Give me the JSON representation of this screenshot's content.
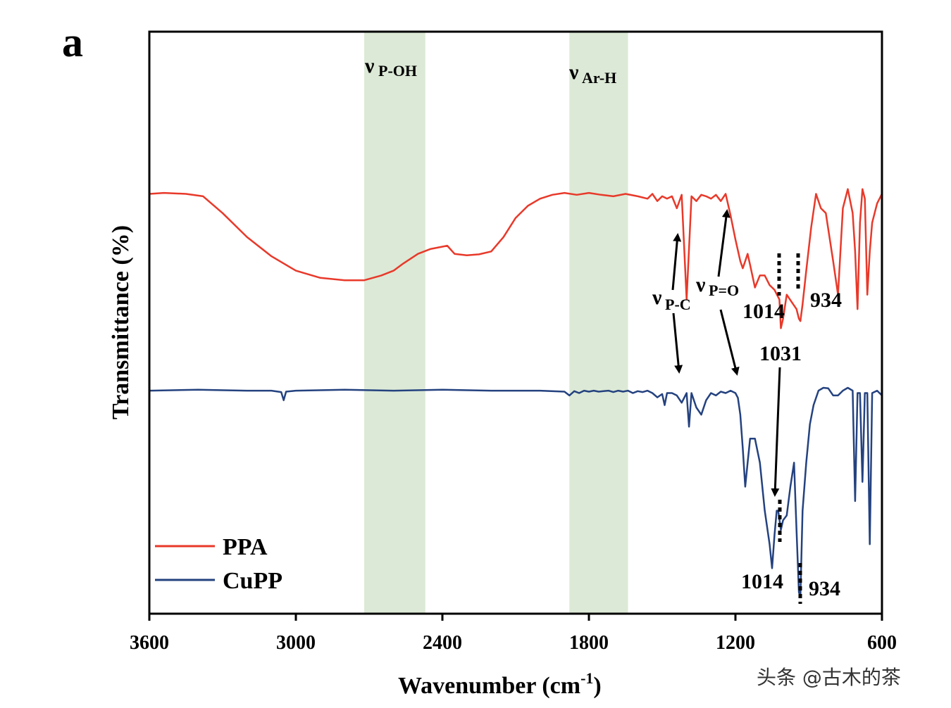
{
  "chart_data": {
    "type": "line",
    "panel_label": "a",
    "xlabel": "Wavenumber (cm",
    "xlabel_sup": "-1",
    "xlabel_end": ")",
    "ylabel": "Transmittance (%)",
    "xlim": [
      3600,
      600
    ],
    "xticks": [
      3600,
      3000,
      2400,
      1800,
      1200,
      600
    ],
    "ylim": [
      0,
      1
    ],
    "colors": {
      "PPA": "#e8392a",
      "CuPP": "#24427f",
      "band": "#dce9d6"
    },
    "bands": [
      {
        "from": 2720,
        "to": 2470,
        "label_main": "ν",
        "label_sub": "P-OH"
      },
      {
        "from": 1880,
        "to": 1640,
        "label_main": "ν",
        "label_sub": "Ar-H"
      }
    ],
    "series": [
      {
        "name": "PPA",
        "color": "#e8392a",
        "x": [
          3600,
          3540,
          3450,
          3380,
          3300,
          3200,
          3100,
          3000,
          2900,
          2800,
          2720,
          2650,
          2600,
          2560,
          2500,
          2450,
          2400,
          2380,
          2350,
          2300,
          2250,
          2200,
          2150,
          2100,
          2050,
          2000,
          1950,
          1900,
          1850,
          1800,
          1750,
          1700,
          1650,
          1600,
          1560,
          1540,
          1520,
          1500,
          1480,
          1460,
          1440,
          1420,
          1400,
          1380,
          1360,
          1340,
          1320,
          1300,
          1280,
          1260,
          1240,
          1220,
          1200,
          1180,
          1170,
          1160,
          1150,
          1140,
          1120,
          1100,
          1080,
          1060,
          1040,
          1030,
          1020,
          1014,
          1005,
          990,
          970,
          950,
          940,
          934,
          925,
          910,
          890,
          870,
          850,
          830,
          800,
          780,
          760,
          740,
          720,
          710,
          700,
          690,
          680,
          670,
          660,
          650,
          640,
          620,
          600
        ],
        "y": [
          0.86,
          0.862,
          0.86,
          0.855,
          0.82,
          0.77,
          0.73,
          0.7,
          0.685,
          0.68,
          0.68,
          0.69,
          0.7,
          0.715,
          0.735,
          0.745,
          0.75,
          0.752,
          0.735,
          0.732,
          0.734,
          0.74,
          0.77,
          0.81,
          0.835,
          0.85,
          0.858,
          0.862,
          0.858,
          0.862,
          0.858,
          0.855,
          0.86,
          0.855,
          0.85,
          0.86,
          0.845,
          0.855,
          0.85,
          0.855,
          0.83,
          0.858,
          0.64,
          0.855,
          0.845,
          0.858,
          0.855,
          0.85,
          0.858,
          0.845,
          0.86,
          0.815,
          0.765,
          0.72,
          0.705,
          0.72,
          0.735,
          0.712,
          0.665,
          0.69,
          0.69,
          0.67,
          0.66,
          0.65,
          0.64,
          0.58,
          0.6,
          0.65,
          0.635,
          0.62,
          0.6,
          0.595,
          0.63,
          0.7,
          0.79,
          0.86,
          0.83,
          0.82,
          0.72,
          0.65,
          0.83,
          0.87,
          0.82,
          0.74,
          0.62,
          0.8,
          0.87,
          0.85,
          0.65,
          0.74,
          0.8,
          0.84,
          0.86
        ]
      },
      {
        "name": "CuPP",
        "color": "#24427f",
        "x": [
          3600,
          3400,
          3200,
          3100,
          3060,
          3050,
          3040,
          3000,
          2800,
          2600,
          2400,
          2200,
          2000,
          1900,
          1880,
          1860,
          1840,
          1820,
          1800,
          1780,
          1760,
          1740,
          1720,
          1700,
          1680,
          1660,
          1640,
          1620,
          1600,
          1580,
          1560,
          1540,
          1520,
          1500,
          1490,
          1480,
          1460,
          1440,
          1420,
          1400,
          1390,
          1380,
          1360,
          1340,
          1320,
          1300,
          1280,
          1260,
          1240,
          1220,
          1200,
          1190,
          1180,
          1170,
          1160,
          1150,
          1140,
          1120,
          1100,
          1080,
          1060,
          1050,
          1040,
          1031,
          1025,
          1014,
          1005,
          990,
          975,
          960,
          950,
          940,
          934,
          925,
          910,
          895,
          880,
          860,
          840,
          820,
          800,
          780,
          760,
          740,
          720,
          710,
          700,
          690,
          680,
          670,
          660,
          650,
          640,
          620,
          600
        ],
        "y": [
          0.45,
          0.452,
          0.45,
          0.45,
          0.447,
          0.43,
          0.448,
          0.45,
          0.452,
          0.45,
          0.452,
          0.45,
          0.45,
          0.448,
          0.44,
          0.449,
          0.445,
          0.45,
          0.448,
          0.45,
          0.448,
          0.449,
          0.45,
          0.447,
          0.45,
          0.448,
          0.45,
          0.445,
          0.449,
          0.447,
          0.45,
          0.445,
          0.436,
          0.443,
          0.42,
          0.445,
          0.445,
          0.44,
          0.425,
          0.445,
          0.375,
          0.445,
          0.415,
          0.4,
          0.43,
          0.445,
          0.44,
          0.448,
          0.445,
          0.45,
          0.445,
          0.435,
          0.4,
          0.33,
          0.25,
          0.3,
          0.35,
          0.35,
          0.3,
          0.2,
          0.13,
          0.08,
          0.15,
          0.2,
          0.2,
          0.16,
          0.18,
          0.19,
          0.25,
          0.3,
          0.16,
          0.03,
          0.02,
          0.2,
          0.3,
          0.38,
          0.42,
          0.45,
          0.456,
          0.455,
          0.44,
          0.44,
          0.45,
          0.456,
          0.45,
          0.22,
          0.445,
          0.445,
          0.26,
          0.445,
          0.445,
          0.13,
          0.445,
          0.45,
          0.44
        ]
      }
    ],
    "annotations": [
      {
        "text": "1014",
        "series": "PPA",
        "x": 1014
      },
      {
        "text": "934",
        "series": "PPA",
        "x": 934
      },
      {
        "text": "1031",
        "series": "CuPP",
        "x": 1031
      },
      {
        "text": "1014",
        "series": "CuPP",
        "x": 1014
      },
      {
        "text": "934",
        "series": "CuPP",
        "x": 934
      },
      {
        "text_main": "ν",
        "text_sub": "P-C",
        "x": 1400
      },
      {
        "text_main": "ν",
        "text_sub": "P=O",
        "x": 1220
      }
    ],
    "legend": {
      "position": "bottom-left",
      "entries": [
        "PPA",
        "CuPP"
      ]
    }
  },
  "watermark": "头条 @古木的茶"
}
